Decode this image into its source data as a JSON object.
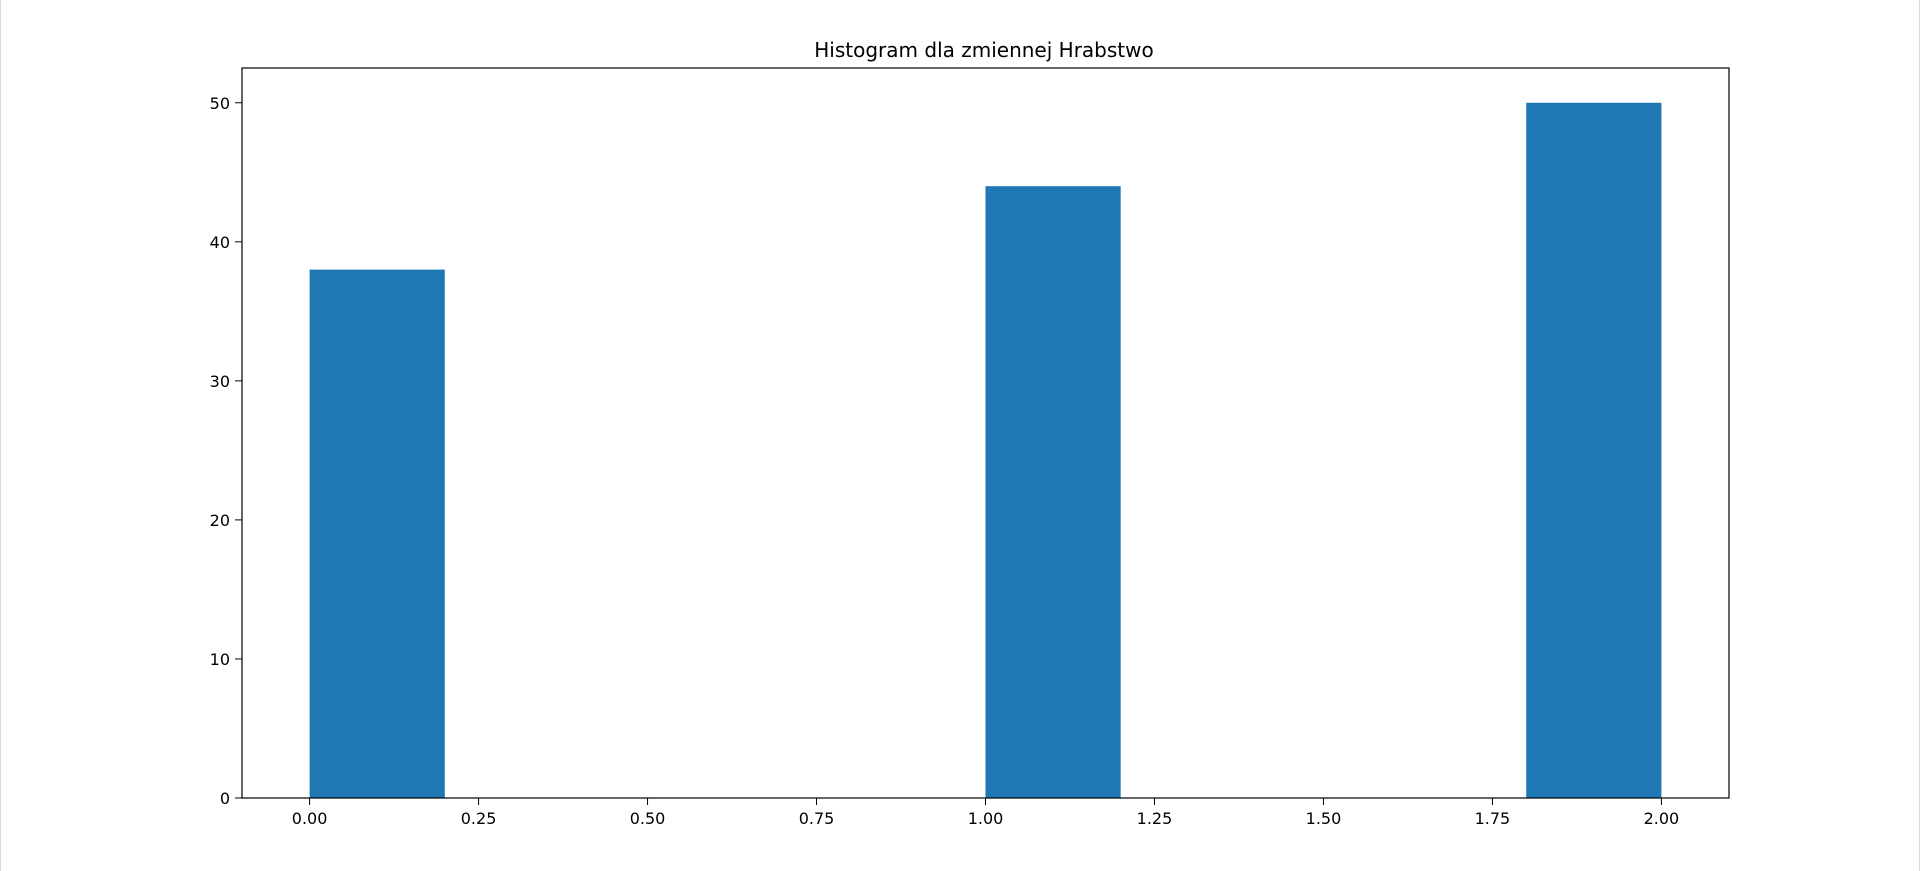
{
  "chart_data": {
    "type": "bar",
    "title": "Histogram dla zmiennej Hrabstwo",
    "xlabel": "",
    "ylabel": "",
    "bins": [
      {
        "start": 0.0,
        "end": 0.2,
        "count": 38
      },
      {
        "start": 0.2,
        "end": 0.4,
        "count": 0
      },
      {
        "start": 0.4,
        "end": 0.6,
        "count": 0
      },
      {
        "start": 0.6,
        "end": 0.8,
        "count": 0
      },
      {
        "start": 0.8,
        "end": 1.0,
        "count": 0
      },
      {
        "start": 1.0,
        "end": 1.2,
        "count": 44
      },
      {
        "start": 1.2,
        "end": 1.4,
        "count": 0
      },
      {
        "start": 1.4,
        "end": 1.6,
        "count": 0
      },
      {
        "start": 1.6,
        "end": 1.8,
        "count": 0
      },
      {
        "start": 1.8,
        "end": 2.0,
        "count": 50
      }
    ],
    "xlim": [
      -0.1,
      2.1
    ],
    "ylim": [
      0,
      52.5
    ],
    "x_ticks": [
      "0.00",
      "0.25",
      "0.50",
      "0.75",
      "1.00",
      "1.25",
      "1.50",
      "1.75",
      "2.00"
    ],
    "y_ticks": [
      "0",
      "10",
      "20",
      "30",
      "40",
      "50"
    ],
    "grid": false,
    "bar_color": "#1f77b4"
  }
}
